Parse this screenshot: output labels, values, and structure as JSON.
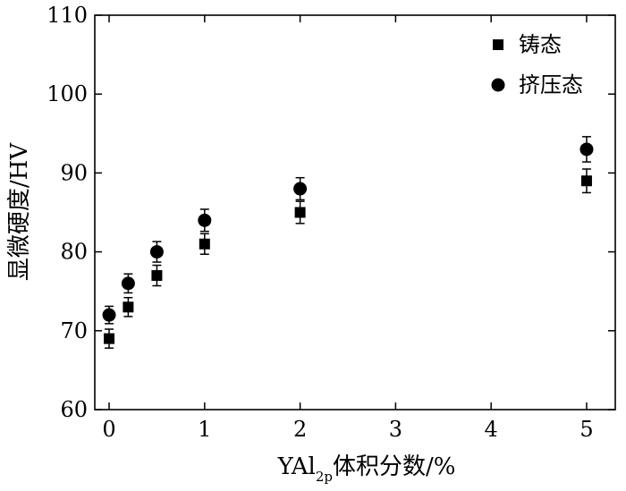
{
  "chart_data": {
    "type": "scatter",
    "xlabel_main": "YAl",
    "xlabel_sub": "2p",
    "xlabel_rest": "体积分数/%",
    "ylabel": "显微硬度/HV",
    "xlim": [
      -0.15,
      5.3
    ],
    "ylim": [
      60,
      110
    ],
    "x_ticks": [
      0,
      1,
      2,
      3,
      4,
      5
    ],
    "y_ticks": [
      60,
      70,
      80,
      90,
      100,
      110
    ],
    "x_tick_labels": [
      "0",
      "1",
      "2",
      "3",
      "4",
      "5"
    ],
    "y_tick_labels": [
      "60",
      "70",
      "80",
      "90",
      "100",
      "110"
    ],
    "legend_position": "top-right",
    "series": [
      {
        "name": "铸态",
        "marker": "square",
        "color": "#000000",
        "points": [
          {
            "x": 0,
            "y": 69,
            "err": 1.2
          },
          {
            "x": 0.2,
            "y": 73,
            "err": 1.2
          },
          {
            "x": 0.5,
            "y": 77,
            "err": 1.3
          },
          {
            "x": 1,
            "y": 81,
            "err": 1.3
          },
          {
            "x": 2,
            "y": 85,
            "err": 1.4
          },
          {
            "x": 5,
            "y": 89,
            "err": 1.5
          }
        ]
      },
      {
        "name": "挤压态",
        "marker": "circle",
        "color": "#000000",
        "points": [
          {
            "x": 0,
            "y": 72,
            "err": 1.1
          },
          {
            "x": 0.2,
            "y": 76,
            "err": 1.2
          },
          {
            "x": 0.5,
            "y": 80,
            "err": 1.3
          },
          {
            "x": 1,
            "y": 84,
            "err": 1.4
          },
          {
            "x": 2,
            "y": 88,
            "err": 1.4
          },
          {
            "x": 5,
            "y": 93,
            "err": 1.6
          }
        ]
      }
    ]
  }
}
